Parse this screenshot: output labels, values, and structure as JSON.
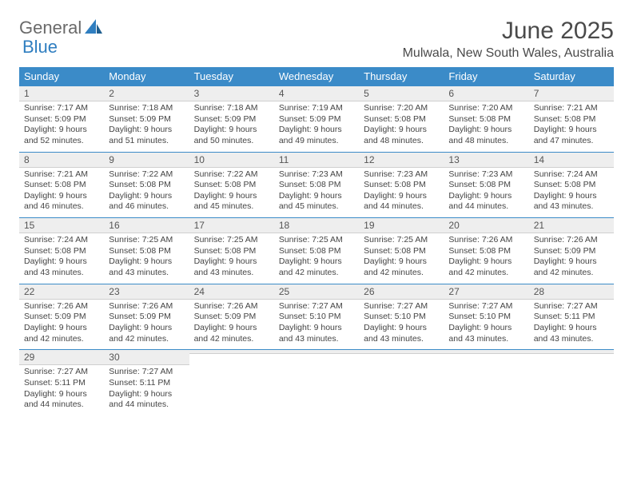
{
  "brand": {
    "general": "General",
    "blue": "Blue"
  },
  "title": "June 2025",
  "location": "Mulwala, New South Wales, Australia",
  "colors": {
    "header_bg": "#3b8bc8",
    "header_text": "#ffffff",
    "daynum_bg": "#eeeeee",
    "border": "#3b8bc8",
    "body_text": "#444444",
    "title_text": "#4a4a4a"
  },
  "layout": {
    "columns": 7,
    "rows": 5,
    "cell_font_size_pt": 10.5,
    "header_font_size_pt": 13,
    "title_font_size_pt": 30
  },
  "day_names": [
    "Sunday",
    "Monday",
    "Tuesday",
    "Wednesday",
    "Thursday",
    "Friday",
    "Saturday"
  ],
  "weeks": [
    [
      {
        "n": "1",
        "sr": "Sunrise: 7:17 AM",
        "ss": "Sunset: 5:09 PM",
        "d1": "Daylight: 9 hours",
        "d2": "and 52 minutes."
      },
      {
        "n": "2",
        "sr": "Sunrise: 7:18 AM",
        "ss": "Sunset: 5:09 PM",
        "d1": "Daylight: 9 hours",
        "d2": "and 51 minutes."
      },
      {
        "n": "3",
        "sr": "Sunrise: 7:18 AM",
        "ss": "Sunset: 5:09 PM",
        "d1": "Daylight: 9 hours",
        "d2": "and 50 minutes."
      },
      {
        "n": "4",
        "sr": "Sunrise: 7:19 AM",
        "ss": "Sunset: 5:09 PM",
        "d1": "Daylight: 9 hours",
        "d2": "and 49 minutes."
      },
      {
        "n": "5",
        "sr": "Sunrise: 7:20 AM",
        "ss": "Sunset: 5:08 PM",
        "d1": "Daylight: 9 hours",
        "d2": "and 48 minutes."
      },
      {
        "n": "6",
        "sr": "Sunrise: 7:20 AM",
        "ss": "Sunset: 5:08 PM",
        "d1": "Daylight: 9 hours",
        "d2": "and 48 minutes."
      },
      {
        "n": "7",
        "sr": "Sunrise: 7:21 AM",
        "ss": "Sunset: 5:08 PM",
        "d1": "Daylight: 9 hours",
        "d2": "and 47 minutes."
      }
    ],
    [
      {
        "n": "8",
        "sr": "Sunrise: 7:21 AM",
        "ss": "Sunset: 5:08 PM",
        "d1": "Daylight: 9 hours",
        "d2": "and 46 minutes."
      },
      {
        "n": "9",
        "sr": "Sunrise: 7:22 AM",
        "ss": "Sunset: 5:08 PM",
        "d1": "Daylight: 9 hours",
        "d2": "and 46 minutes."
      },
      {
        "n": "10",
        "sr": "Sunrise: 7:22 AM",
        "ss": "Sunset: 5:08 PM",
        "d1": "Daylight: 9 hours",
        "d2": "and 45 minutes."
      },
      {
        "n": "11",
        "sr": "Sunrise: 7:23 AM",
        "ss": "Sunset: 5:08 PM",
        "d1": "Daylight: 9 hours",
        "d2": "and 45 minutes."
      },
      {
        "n": "12",
        "sr": "Sunrise: 7:23 AM",
        "ss": "Sunset: 5:08 PM",
        "d1": "Daylight: 9 hours",
        "d2": "and 44 minutes."
      },
      {
        "n": "13",
        "sr": "Sunrise: 7:23 AM",
        "ss": "Sunset: 5:08 PM",
        "d1": "Daylight: 9 hours",
        "d2": "and 44 minutes."
      },
      {
        "n": "14",
        "sr": "Sunrise: 7:24 AM",
        "ss": "Sunset: 5:08 PM",
        "d1": "Daylight: 9 hours",
        "d2": "and 43 minutes."
      }
    ],
    [
      {
        "n": "15",
        "sr": "Sunrise: 7:24 AM",
        "ss": "Sunset: 5:08 PM",
        "d1": "Daylight: 9 hours",
        "d2": "and 43 minutes."
      },
      {
        "n": "16",
        "sr": "Sunrise: 7:25 AM",
        "ss": "Sunset: 5:08 PM",
        "d1": "Daylight: 9 hours",
        "d2": "and 43 minutes."
      },
      {
        "n": "17",
        "sr": "Sunrise: 7:25 AM",
        "ss": "Sunset: 5:08 PM",
        "d1": "Daylight: 9 hours",
        "d2": "and 43 minutes."
      },
      {
        "n": "18",
        "sr": "Sunrise: 7:25 AM",
        "ss": "Sunset: 5:08 PM",
        "d1": "Daylight: 9 hours",
        "d2": "and 42 minutes."
      },
      {
        "n": "19",
        "sr": "Sunrise: 7:25 AM",
        "ss": "Sunset: 5:08 PM",
        "d1": "Daylight: 9 hours",
        "d2": "and 42 minutes."
      },
      {
        "n": "20",
        "sr": "Sunrise: 7:26 AM",
        "ss": "Sunset: 5:08 PM",
        "d1": "Daylight: 9 hours",
        "d2": "and 42 minutes."
      },
      {
        "n": "21",
        "sr": "Sunrise: 7:26 AM",
        "ss": "Sunset: 5:09 PM",
        "d1": "Daylight: 9 hours",
        "d2": "and 42 minutes."
      }
    ],
    [
      {
        "n": "22",
        "sr": "Sunrise: 7:26 AM",
        "ss": "Sunset: 5:09 PM",
        "d1": "Daylight: 9 hours",
        "d2": "and 42 minutes."
      },
      {
        "n": "23",
        "sr": "Sunrise: 7:26 AM",
        "ss": "Sunset: 5:09 PM",
        "d1": "Daylight: 9 hours",
        "d2": "and 42 minutes."
      },
      {
        "n": "24",
        "sr": "Sunrise: 7:26 AM",
        "ss": "Sunset: 5:09 PM",
        "d1": "Daylight: 9 hours",
        "d2": "and 42 minutes."
      },
      {
        "n": "25",
        "sr": "Sunrise: 7:27 AM",
        "ss": "Sunset: 5:10 PM",
        "d1": "Daylight: 9 hours",
        "d2": "and 43 minutes."
      },
      {
        "n": "26",
        "sr": "Sunrise: 7:27 AM",
        "ss": "Sunset: 5:10 PM",
        "d1": "Daylight: 9 hours",
        "d2": "and 43 minutes."
      },
      {
        "n": "27",
        "sr": "Sunrise: 7:27 AM",
        "ss": "Sunset: 5:10 PM",
        "d1": "Daylight: 9 hours",
        "d2": "and 43 minutes."
      },
      {
        "n": "28",
        "sr": "Sunrise: 7:27 AM",
        "ss": "Sunset: 5:11 PM",
        "d1": "Daylight: 9 hours",
        "d2": "and 43 minutes."
      }
    ],
    [
      {
        "n": "29",
        "sr": "Sunrise: 7:27 AM",
        "ss": "Sunset: 5:11 PM",
        "d1": "Daylight: 9 hours",
        "d2": "and 44 minutes."
      },
      {
        "n": "30",
        "sr": "Sunrise: 7:27 AM",
        "ss": "Sunset: 5:11 PM",
        "d1": "Daylight: 9 hours",
        "d2": "and 44 minutes."
      },
      null,
      null,
      null,
      null,
      null
    ]
  ]
}
